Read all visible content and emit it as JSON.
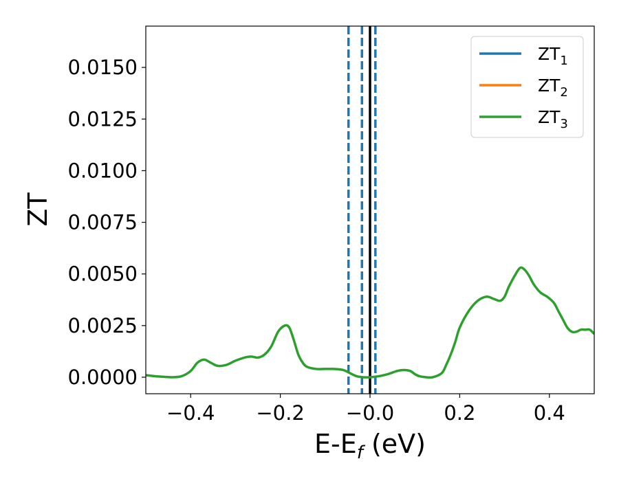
{
  "chart_data": {
    "type": "line",
    "title": "",
    "xlabel": {
      "main": "E-E",
      "sub": "f",
      "unit": " (eV)"
    },
    "ylabel": "ZT",
    "xlim": [
      -0.5,
      0.5
    ],
    "ylim": [
      -0.0008,
      0.017
    ],
    "xticks": [
      -0.4,
      -0.2,
      0.0,
      0.2,
      0.4
    ],
    "xtick_labels": [
      "−0.4",
      "−0.2",
      "−0.0",
      "0.2",
      "0.4"
    ],
    "yticks": [
      0.0,
      0.0025,
      0.005,
      0.0075,
      0.01,
      0.0125,
      0.015
    ],
    "ytick_labels": [
      "0.0000",
      "0.0025",
      "0.0050",
      "0.0075",
      "0.0100",
      "0.0125",
      "0.0150"
    ],
    "grid": false,
    "legend_position": "top-right",
    "legend": [
      {
        "base": "ZT",
        "sub": "1",
        "color": "#1f77b4"
      },
      {
        "base": "ZT",
        "sub": "2",
        "color": "#ff7f0e"
      },
      {
        "base": "ZT",
        "sub": "3",
        "color": "#2ca02c"
      }
    ],
    "vlines": [
      {
        "x": -0.048,
        "style": "dashed",
        "color": "#1f77b4"
      },
      {
        "x": -0.018,
        "style": "dashed",
        "color": "#1f77b4"
      },
      {
        "x": 0.0,
        "style": "solid",
        "color": "#000000"
      },
      {
        "x": 0.012,
        "style": "dashed",
        "color": "#1f77b4"
      }
    ],
    "series": [
      {
        "name": "ZT_3",
        "color": "#2ca02c",
        "x": [
          -0.5,
          -0.48,
          -0.46,
          -0.44,
          -0.42,
          -0.4,
          -0.385,
          -0.37,
          -0.355,
          -0.34,
          -0.32,
          -0.3,
          -0.28,
          -0.265,
          -0.25,
          -0.235,
          -0.22,
          -0.205,
          -0.19,
          -0.18,
          -0.17,
          -0.16,
          -0.15,
          -0.14,
          -0.12,
          -0.1,
          -0.08,
          -0.06,
          -0.045,
          -0.03,
          -0.015,
          0.0,
          0.02,
          0.04,
          0.06,
          0.075,
          0.09,
          0.1,
          0.11,
          0.125,
          0.14,
          0.16,
          0.17,
          0.18,
          0.19,
          0.2,
          0.22,
          0.24,
          0.26,
          0.275,
          0.29,
          0.3,
          0.31,
          0.325,
          0.335,
          0.345,
          0.355,
          0.365,
          0.38,
          0.395,
          0.41,
          0.42,
          0.43,
          0.44,
          0.45,
          0.46,
          0.47,
          0.48,
          0.49,
          0.5
        ],
        "y": [
          0.0001,
          5e-05,
          2e-05,
          0.0,
          5e-05,
          0.0003,
          0.0007,
          0.00085,
          0.0007,
          0.00055,
          0.0006,
          0.0008,
          0.00095,
          0.001,
          0.00095,
          0.0011,
          0.0015,
          0.0022,
          0.0025,
          0.0024,
          0.0018,
          0.0011,
          0.0007,
          0.0005,
          0.0004,
          0.0004,
          0.0004,
          0.00035,
          0.0002,
          5e-05,
          0.0,
          0.0,
          5e-05,
          0.00015,
          0.0003,
          0.00035,
          0.0003,
          0.00015,
          5e-05,
          0.0,
          0.0,
          0.0002,
          0.0006,
          0.0011,
          0.0017,
          0.0024,
          0.0032,
          0.0037,
          0.0039,
          0.0038,
          0.0037,
          0.0039,
          0.0044,
          0.005,
          0.0053,
          0.0052,
          0.0049,
          0.0045,
          0.0041,
          0.0039,
          0.0036,
          0.0032,
          0.0028,
          0.0024,
          0.0022,
          0.0022,
          0.0023,
          0.0023,
          0.0023,
          0.0021
        ]
      }
    ]
  }
}
